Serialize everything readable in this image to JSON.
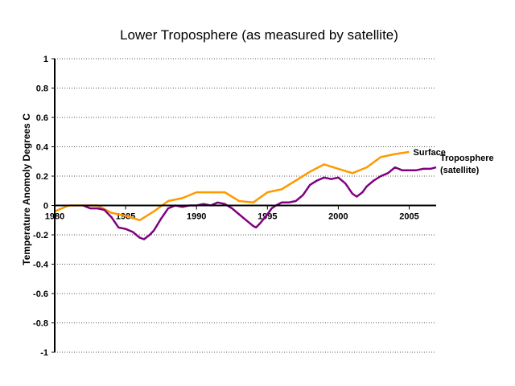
{
  "chart_data": {
    "type": "line",
    "title": "Lower Troposphere (as measured by satellite)",
    "xlabel": "",
    "ylabel": "Temperature Anomoly Degrees C",
    "xlim": [
      1980,
      2006.9
    ],
    "ylim": [
      -1,
      1
    ],
    "x_ticks": [
      1980,
      1985,
      1990,
      1995,
      2000,
      2005
    ],
    "x_tick_labels": [
      "1980",
      "1985",
      "1990",
      "1995",
      "2000",
      "2005"
    ],
    "y_ticks": [
      1,
      0.8,
      0.6,
      0.4,
      0.2,
      0,
      -0.2,
      -0.4,
      -0.6,
      -0.8,
      -1
    ],
    "y_tick_labels": [
      "1",
      "0.8",
      "0.6",
      "0.4",
      "0.2",
      "0",
      "-0.2",
      "-0.4",
      "-0.6",
      "-0.8",
      "-1"
    ],
    "grid": "horizontal-dotted",
    "legend": "inline-right",
    "series": [
      {
        "name": "Surface",
        "label_lines": [
          "Surface"
        ],
        "color": "#FF9900",
        "x": [
          1980,
          1981,
          1982,
          1983,
          1984,
          1985,
          1986,
          1987,
          1988,
          1989,
          1990,
          1991,
          1992,
          1993,
          1994,
          1995,
          1996,
          1997,
          1998,
          1999,
          2000,
          2001,
          2002,
          2003,
          2004,
          2005
        ],
        "y": [
          -0.04,
          0.0,
          0.0,
          0.0,
          -0.05,
          -0.07,
          -0.1,
          -0.04,
          0.03,
          0.05,
          0.09,
          0.09,
          0.09,
          0.03,
          0.02,
          0.09,
          0.11,
          0.17,
          0.23,
          0.28,
          0.25,
          0.22,
          0.26,
          0.33,
          0.35,
          0.365
        ]
      },
      {
        "name": "Troposphere (satellite)",
        "label_lines": [
          "Troposphere",
          "(satellite)"
        ],
        "color": "#800080",
        "x": [
          1982,
          1982.5,
          1983,
          1983.5,
          1984,
          1984.5,
          1985,
          1985.5,
          1986,
          1986.3,
          1986.7,
          1987,
          1987.5,
          1988,
          1988.5,
          1989,
          1989.5,
          1990,
          1990.5,
          1991,
          1991.5,
          1992,
          1992.5,
          1993,
          1993.5,
          1994,
          1994.2,
          1994.5,
          1995,
          1995.3,
          1995.6,
          1996,
          1996.5,
          1997,
          1997.5,
          1998,
          1998.5,
          1999,
          1999.5,
          2000,
          2000.5,
          2001,
          2001.3,
          2001.7,
          2002,
          2002.5,
          2003,
          2003.5,
          2004,
          2004.5,
          2005,
          2005.5,
          2006,
          2006.5,
          2006.9
        ],
        "y": [
          0.0,
          -0.02,
          -0.02,
          -0.03,
          -0.08,
          -0.15,
          -0.16,
          -0.18,
          -0.22,
          -0.23,
          -0.2,
          -0.17,
          -0.09,
          -0.02,
          0.0,
          -0.01,
          0.0,
          0.0,
          0.01,
          0.0,
          0.02,
          0.01,
          -0.02,
          -0.06,
          -0.1,
          -0.14,
          -0.15,
          -0.12,
          -0.06,
          -0.02,
          0.0,
          0.02,
          0.02,
          0.03,
          0.07,
          0.14,
          0.17,
          0.19,
          0.18,
          0.19,
          0.15,
          0.08,
          0.06,
          0.09,
          0.13,
          0.17,
          0.2,
          0.22,
          0.26,
          0.24,
          0.24,
          0.24,
          0.25,
          0.25,
          0.26
        ]
      }
    ]
  }
}
